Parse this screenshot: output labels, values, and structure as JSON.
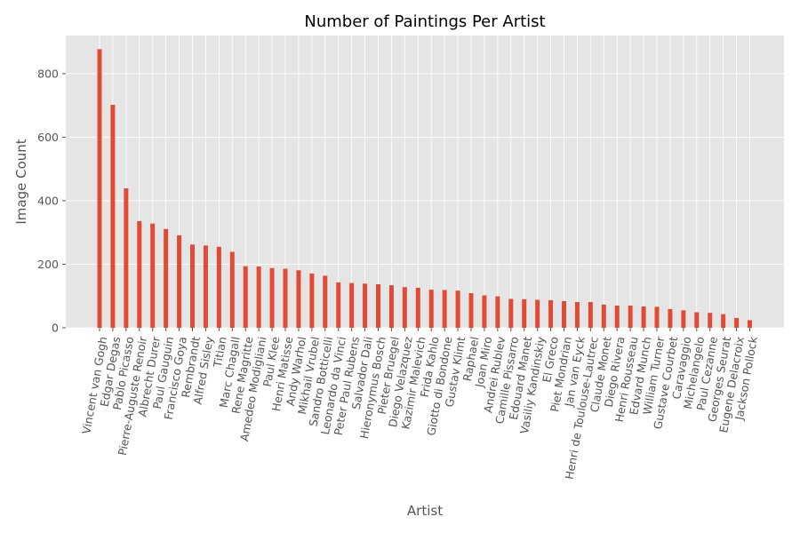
{
  "chart_data": {
    "type": "bar",
    "title": "Number of Paintings Per Artist",
    "xlabel": "Artist",
    "ylabel": "Image Count",
    "ylim": [
      0,
      920
    ],
    "yticks": [
      0,
      200,
      400,
      600,
      800
    ],
    "grid": true,
    "bar_color": "#E24A33",
    "background_color": "#E5E5E5",
    "grid_color": "#FFFFFF",
    "categories": [
      "Vincent van Gogh",
      "Edgar Degas",
      "Pablo Picasso",
      "Pierre-Auguste Renoir",
      "Albrecht Durer",
      "Paul Gauguin",
      "Francisco Goya",
      "Rembrandt",
      "Alfred Sisley",
      "Titian",
      "Marc Chagall",
      "Rene Magritte",
      "Amedeo Modigliani",
      "Paul Klee",
      "Henri Matisse",
      "Andy Warhol",
      "Mikhail Vrubel",
      "Sandro Botticelli",
      "Leonardo da Vinci",
      "Peter Paul Rubens",
      "Salvador Dali",
      "Hieronymus Bosch",
      "Pieter Bruegel",
      "Diego Velazquez",
      "Kazimir Malevich",
      "Frida Kahlo",
      "Giotto di Bondone",
      "Gustav Klimt",
      "Raphael",
      "Joan Miro",
      "Andrei Rublev",
      "Camille Pissarro",
      "Edouard Manet",
      "Vasiliy Kandinskiy",
      "El Greco",
      "Piet Mondrian",
      "Jan van Eyck",
      "Henri de Toulouse-Lautrec",
      "Claude Monet",
      "Diego Rivera",
      "Henri Rousseau",
      "Edvard Munch",
      "William Turner",
      "Gustave Courbet",
      "Caravaggio",
      "Michelangelo",
      "Paul Cezanne",
      "Georges Seurat",
      "Eugene Delacroix",
      "Jackson Pollock"
    ],
    "values": [
      877,
      702,
      439,
      336,
      328,
      311,
      291,
      262,
      259,
      255,
      239,
      194,
      193,
      188,
      186,
      181,
      171,
      164,
      143,
      141,
      139,
      137,
      134,
      128,
      126,
      120,
      119,
      117,
      109,
      102,
      99,
      91,
      90,
      88,
      87,
      84,
      81,
      81,
      73,
      70,
      70,
      67,
      66,
      59,
      55,
      49,
      47,
      43,
      31,
      24
    ]
  }
}
